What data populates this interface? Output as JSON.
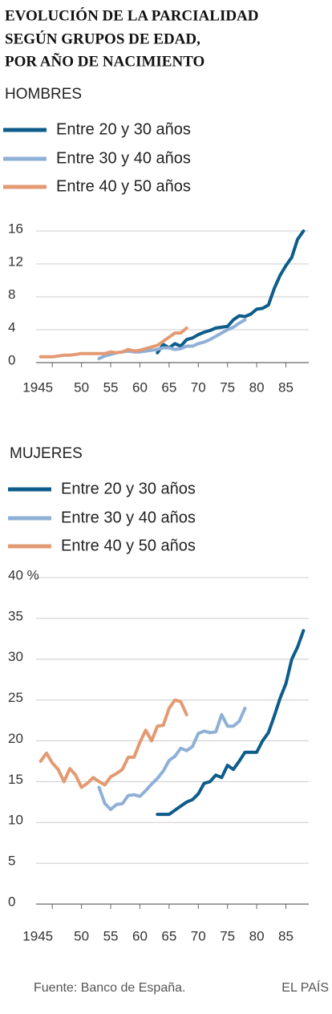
{
  "title": [
    "EVOLUCIÓN DE LA PARCIALIDAD",
    "SEGÚN GRUPOS  DE EDAD,",
    "POR AÑO DE NACIMIENTO"
  ],
  "source": "Fuente: Banco de España.",
  "credit": "EL PAÍS",
  "chart_data": [
    {
      "type": "line",
      "subtitle": "HOMBRES",
      "xlim": [
        1942.5,
        1988.5
      ],
      "xticks": [
        1945,
        {
          "value": 1950,
          "label": "50"
        },
        {
          "value": 1955,
          "label": "55"
        },
        {
          "value": 1960,
          "label": "60"
        },
        {
          "value": 1965,
          "label": "65"
        },
        {
          "value": 1970,
          "label": "70"
        },
        {
          "value": 1975,
          "label": "75"
        },
        {
          "value": 1980,
          "label": "80"
        },
        {
          "value": 1985,
          "label": "85"
        }
      ],
      "ylim": [
        0,
        16
      ],
      "yticks": [
        0,
        4,
        8,
        12,
        16
      ],
      "grid": true,
      "series": [
        {
          "name": "Entre 20 y 30 años",
          "color": "#0e5c8a",
          "x": [
            1963,
            1964,
            1965,
            1966,
            1967,
            1968,
            1969,
            1970,
            1971,
            1972,
            1973,
            1974,
            1975,
            1976,
            1977,
            1978,
            1979,
            1980,
            1981,
            1982,
            1983,
            1984,
            1985,
            1986,
            1987,
            1988
          ],
          "values": [
            1.2,
            2.2,
            1.8,
            2.3,
            2.0,
            2.8,
            3.0,
            3.4,
            3.7,
            3.9,
            4.2,
            4.3,
            4.4,
            5.2,
            5.7,
            5.6,
            5.9,
            6.5,
            6.6,
            7.0,
            9.0,
            10.6,
            11.8,
            12.8,
            15.0,
            16.0
          ]
        },
        {
          "name": "Entre 30 y 40 años",
          "color": "#8fb0d6",
          "x": [
            1953,
            1954,
            1955,
            1956,
            1957,
            1958,
            1959,
            1960,
            1961,
            1962,
            1963,
            1964,
            1965,
            1966,
            1967,
            1968,
            1969,
            1970,
            1971,
            1972,
            1973,
            1974,
            1975,
            1976,
            1977,
            1978
          ],
          "values": [
            0.5,
            0.8,
            1.0,
            1.2,
            1.3,
            1.4,
            1.3,
            1.3,
            1.4,
            1.5,
            1.6,
            1.8,
            1.8,
            1.6,
            1.7,
            2.0,
            2.0,
            2.3,
            2.5,
            2.8,
            3.2,
            3.6,
            4.0,
            4.3,
            4.8,
            5.2
          ]
        },
        {
          "name": "Entre 40 y 50 años",
          "color": "#e39a73",
          "x": [
            1943,
            1944,
            1945,
            1946,
            1947,
            1948,
            1949,
            1950,
            1951,
            1952,
            1953,
            1954,
            1955,
            1956,
            1957,
            1958,
            1959,
            1960,
            1961,
            1962,
            1963,
            1964,
            1965,
            1966,
            1967,
            1968
          ],
          "values": [
            0.7,
            0.7,
            0.7,
            0.8,
            0.9,
            0.9,
            1.0,
            1.1,
            1.1,
            1.1,
            1.1,
            1.1,
            1.3,
            1.2,
            1.3,
            1.6,
            1.4,
            1.5,
            1.7,
            1.9,
            2.1,
            2.6,
            3.1,
            3.6,
            3.6,
            4.2
          ]
        }
      ]
    },
    {
      "type": "line",
      "subtitle": "MUJERES",
      "xlim": [
        1942.5,
        1988.5
      ],
      "xticks": [
        1945,
        {
          "value": 1950,
          "label": "50"
        },
        {
          "value": 1955,
          "label": "55"
        },
        {
          "value": 1960,
          "label": "60"
        },
        {
          "value": 1965,
          "label": "65"
        },
        {
          "value": 1970,
          "label": "70"
        },
        {
          "value": 1975,
          "label": "75"
        },
        {
          "value": 1980,
          "label": "80"
        },
        {
          "value": 1985,
          "label": "85"
        }
      ],
      "ylim": [
        0,
        40
      ],
      "yticks": [
        0,
        5,
        10,
        15,
        20,
        25,
        30,
        35,
        {
          "value": 40,
          "label": "40 %"
        }
      ],
      "grid": true,
      "series": [
        {
          "name": "Entre 20 y 30 años",
          "color": "#0e5c8a",
          "x": [
            1963,
            1964,
            1965,
            1966,
            1967,
            1968,
            1969,
            1970,
            1971,
            1972,
            1973,
            1974,
            1975,
            1976,
            1977,
            1978,
            1979,
            1980,
            1981,
            1982,
            1983,
            1984,
            1985,
            1986,
            1987,
            1988
          ],
          "values": [
            11.0,
            11.0,
            11.0,
            11.5,
            12.0,
            12.5,
            12.8,
            13.5,
            14.8,
            15.0,
            15.8,
            15.5,
            17.0,
            16.5,
            17.5,
            18.6,
            18.6,
            18.6,
            20.0,
            21.0,
            23.0,
            25.2,
            27.0,
            30.0,
            31.5,
            33.5
          ]
        },
        {
          "name": "Entre 30 y 40 años",
          "color": "#8fb0d6",
          "x": [
            1953,
            1954,
            1955,
            1956,
            1957,
            1958,
            1959,
            1960,
            1961,
            1962,
            1963,
            1964,
            1965,
            1966,
            1967,
            1968,
            1969,
            1970,
            1971,
            1972,
            1973,
            1974,
            1975,
            1976,
            1977,
            1978
          ],
          "values": [
            14.3,
            12.3,
            11.6,
            12.2,
            12.3,
            13.3,
            13.4,
            13.2,
            13.9,
            14.7,
            15.4,
            16.3,
            17.6,
            18.1,
            19.1,
            18.8,
            19.3,
            20.9,
            21.2,
            21.0,
            21.1,
            23.2,
            21.8,
            21.8,
            22.4,
            24.0
          ]
        },
        {
          "name": "Entre 40 y 50 años",
          "color": "#e39a73",
          "x": [
            1943,
            1944,
            1945,
            1946,
            1947,
            1948,
            1949,
            1950,
            1951,
            1952,
            1953,
            1954,
            1955,
            1956,
            1957,
            1958,
            1959,
            1960,
            1961,
            1962,
            1963,
            1964,
            1965,
            1966,
            1967,
            1968
          ],
          "values": [
            17.5,
            18.5,
            17.3,
            16.5,
            15.0,
            16.6,
            15.8,
            14.3,
            14.8,
            15.5,
            15.0,
            14.6,
            15.6,
            16.0,
            16.5,
            18.0,
            18.0,
            19.8,
            21.3,
            20.0,
            21.8,
            21.9,
            24.0,
            25.0,
            24.8,
            23.2
          ]
        }
      ]
    }
  ]
}
